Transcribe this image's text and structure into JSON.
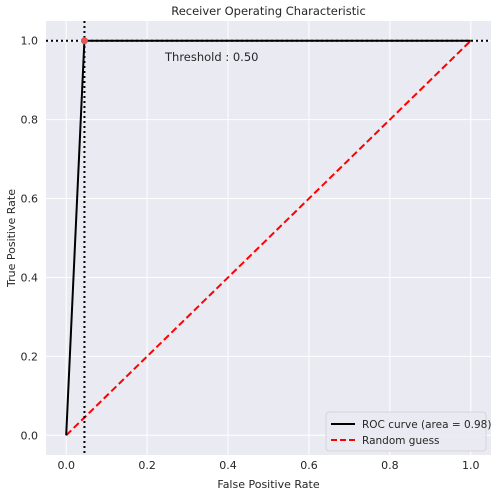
{
  "chart_data": {
    "type": "line",
    "title": "Receiver Operating Characteristic",
    "xlabel": "False Positive Rate",
    "ylabel": "True Positive Rate",
    "xlim": [
      -0.05,
      1.05
    ],
    "ylim": [
      -0.05,
      1.05
    ],
    "xticks": [
      "0.0",
      "0.2",
      "0.4",
      "0.6",
      "0.8",
      "1.0"
    ],
    "yticks": [
      "0.0",
      "0.2",
      "0.4",
      "0.6",
      "0.8",
      "1.0"
    ],
    "grid": true,
    "legend_position": "lower-right",
    "series": [
      {
        "name": "ROC curve (area = 0.98)",
        "color": "#000000",
        "style": "solid",
        "x": [
          0.0,
          0.045,
          1.0
        ],
        "y": [
          0.0,
          1.0,
          1.0
        ]
      },
      {
        "name": "Random guess",
        "color": "#ff0000",
        "style": "dashed",
        "x": [
          0.0,
          1.0
        ],
        "y": [
          0.0,
          1.0
        ]
      }
    ],
    "threshold": {
      "label": "Threshold : 0.50",
      "x": 0.045,
      "y": 1.0,
      "marker_color": "#e3565a"
    },
    "colors": {
      "plot_background": "#eaeaf2",
      "grid": "#ffffff"
    }
  }
}
